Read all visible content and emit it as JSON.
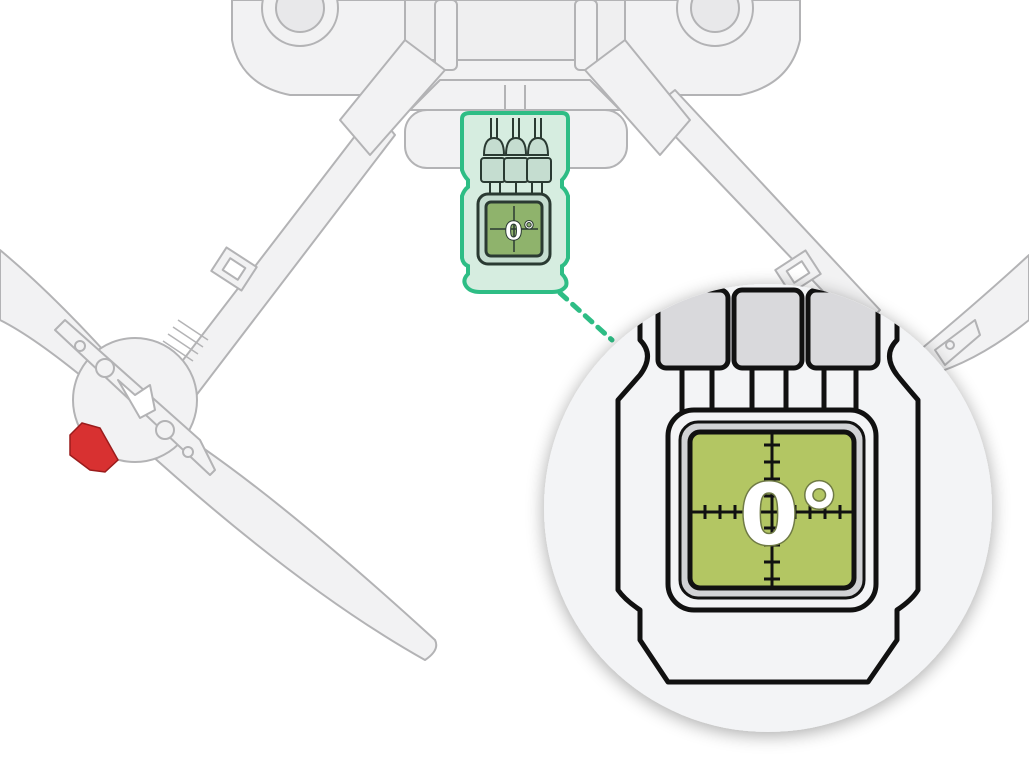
{
  "diagram": {
    "subject": "drone",
    "module_reading": "0°",
    "zoom_reading": "0°"
  },
  "colors": {
    "drone_fill": "#f2f2f3",
    "drone_stroke": "#b3b3b5",
    "highlight": "#2ebd85",
    "highlight_fill": "#d6ede0",
    "lcd_fill": "#b3c663",
    "led_red": "#d83131",
    "zoom_bg": "#f3f4f6",
    "outline": "#111111"
  }
}
